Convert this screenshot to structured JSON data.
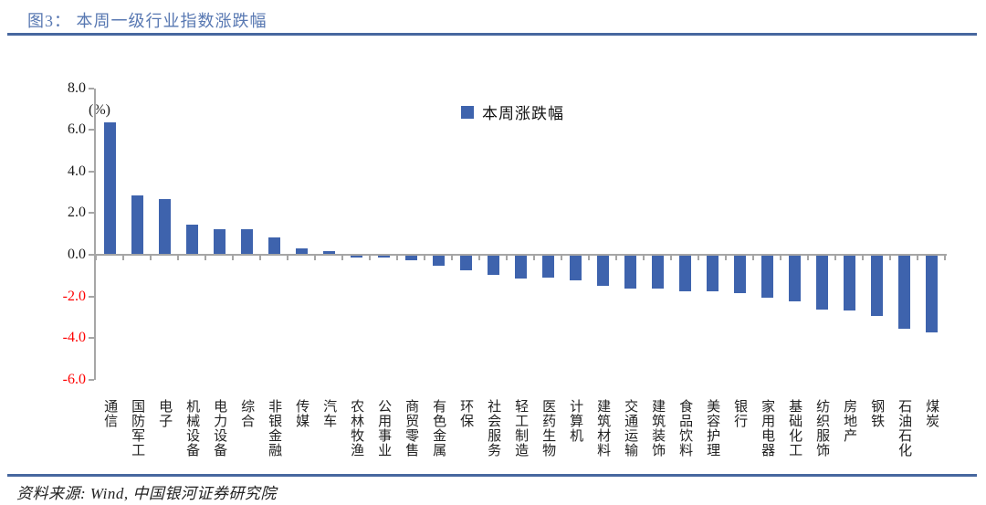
{
  "page": {
    "title": "图3： 本周一级行业指数涨跌幅",
    "source": "资料来源: Wind, 中国银河证券研究院"
  },
  "colors": {
    "bar": "#3e63ad",
    "title": "#5878b2",
    "rule": "#47679f",
    "axis": "#a6a6a6",
    "negative_tick_label": "#fe0000",
    "positive_tick_label": "#1a1a1a"
  },
  "chart_data": {
    "type": "bar",
    "title": "图3： 本周一级行业指数涨跌幅",
    "unit_label": "(%)",
    "legend": [
      "本周涨跌幅"
    ],
    "legend_position": "top-center",
    "grid": false,
    "ylim": [
      -6.0,
      8.0
    ],
    "yticks": [
      8.0,
      6.0,
      4.0,
      2.0,
      0.0,
      -2.0,
      -4.0,
      -6.0
    ],
    "categories": [
      "通信",
      "国防军工",
      "电子",
      "机械设备",
      "电力设备",
      "综合",
      "非银金融",
      "传媒",
      "汽车",
      "农林牧渔",
      "公用事业",
      "商贸零售",
      "有色金属",
      "环保",
      "社会服务",
      "轻工制造",
      "医药生物",
      "计算机",
      "建筑材料",
      "交通运输",
      "建筑装饰",
      "食品饮料",
      "美容护理",
      "银行",
      "家用电器",
      "基础化工",
      "纺织服饰",
      "房地产",
      "钢铁",
      "石油石化",
      "煤炭"
    ],
    "values": [
      6.3,
      2.8,
      2.65,
      1.4,
      1.2,
      1.2,
      0.8,
      0.25,
      0.15,
      -0.1,
      -0.1,
      -0.2,
      -0.5,
      -0.7,
      -0.9,
      -1.1,
      -1.05,
      -1.2,
      -1.45,
      -1.6,
      -1.6,
      -1.7,
      -1.7,
      -1.8,
      -2.0,
      -2.2,
      -2.6,
      -2.65,
      -2.9,
      -3.5,
      -3.7
    ]
  }
}
